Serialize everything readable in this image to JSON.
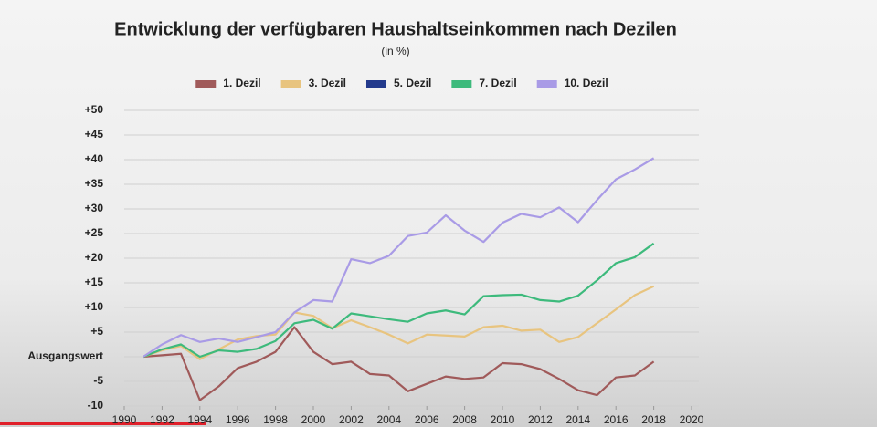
{
  "chart_data": {
    "type": "line",
    "title": "Entwicklung der verfügbaren Haushaltseinkommen nach Dezilen",
    "subtitle": "(in %)",
    "x": [
      1991,
      1992,
      1993,
      1994,
      1995,
      1996,
      1997,
      1998,
      1999,
      2000,
      2001,
      2002,
      2003,
      2004,
      2005,
      2006,
      2007,
      2008,
      2009,
      2010,
      2011,
      2012,
      2013,
      2014,
      2015,
      2016,
      2017,
      2018
    ],
    "series": [
      {
        "name": "1. Dezil",
        "color": "#a05a5a",
        "values": [
          0,
          0.3,
          0.6,
          -8.8,
          -6,
          -2.3,
          -1,
          1,
          6,
          1,
          -1.5,
          -1,
          -3.5,
          -3.8,
          -7,
          -5.5,
          -4,
          -4.5,
          -4.2,
          -1.3,
          -1.5,
          -2.5,
          -4.5,
          -6.8,
          -7.8,
          -4.2,
          -3.8,
          -1
        ]
      },
      {
        "name": "3. Dezil",
        "color": "#e8c47f",
        "values": [
          0,
          1.3,
          2.2,
          -0.5,
          1.5,
          3.5,
          4.2,
          4.5,
          9,
          8.3,
          5.8,
          7.4,
          6,
          4.5,
          2.7,
          4.5,
          4.3,
          4.1,
          6,
          6.3,
          5.3,
          5.5,
          3,
          4,
          6.8,
          9.6,
          12.5,
          14.3
        ]
      },
      {
        "name": "5. Dezil",
        "color": "#233a8c",
        "values": [
          null,
          null,
          null,
          null,
          null,
          null,
          null,
          null,
          null,
          null,
          null,
          null,
          null,
          null,
          null,
          null,
          null,
          null,
          null,
          null,
          null,
          null,
          null,
          null,
          null,
          null,
          null,
          null
        ]
      },
      {
        "name": "7. Dezil",
        "color": "#3dba7c",
        "values": [
          0,
          1.5,
          2.5,
          0,
          1.3,
          1,
          1.6,
          3.2,
          6.8,
          7.5,
          5.7,
          8.8,
          8.2,
          7.6,
          7.1,
          8.8,
          9.4,
          8.6,
          12.3,
          12.5,
          12.6,
          11.5,
          11.2,
          12.4,
          15.5,
          19,
          20.2,
          23
        ]
      },
      {
        "name": "10. Dezil",
        "color": "#a99be6",
        "values": [
          0,
          2.5,
          4.4,
          3,
          3.7,
          3,
          4,
          5,
          9,
          11.5,
          11.2,
          19.8,
          19,
          20.5,
          24.5,
          25.2,
          28.7,
          25.6,
          23.3,
          27.2,
          29,
          28.3,
          30.3,
          27.3,
          31.8,
          36,
          38,
          40.3
        ]
      }
    ],
    "xlim": [
      1990,
      2020
    ],
    "xticks": [
      1990,
      1992,
      1994,
      1996,
      1998,
      2000,
      2002,
      2004,
      2006,
      2008,
      2010,
      2012,
      2014,
      2016,
      2018,
      2020
    ],
    "ylim": [
      -10,
      50
    ],
    "yticks": [
      -10,
      -5,
      {
        "value": 0,
        "label": "Ausgangswert"
      },
      {
        "value": 5,
        "label": "+5"
      },
      {
        "value": 10,
        "label": "+10"
      },
      {
        "value": 15,
        "label": "+15"
      },
      {
        "value": 20,
        "label": "+20"
      },
      {
        "value": 25,
        "label": "+25"
      },
      {
        "value": 30,
        "label": "+30"
      },
      {
        "value": 35,
        "label": "+35"
      },
      {
        "value": 40,
        "label": "+40"
      },
      {
        "value": 45,
        "label": "+45"
      },
      {
        "value": 50,
        "label": "+50"
      }
    ],
    "grid": true
  }
}
